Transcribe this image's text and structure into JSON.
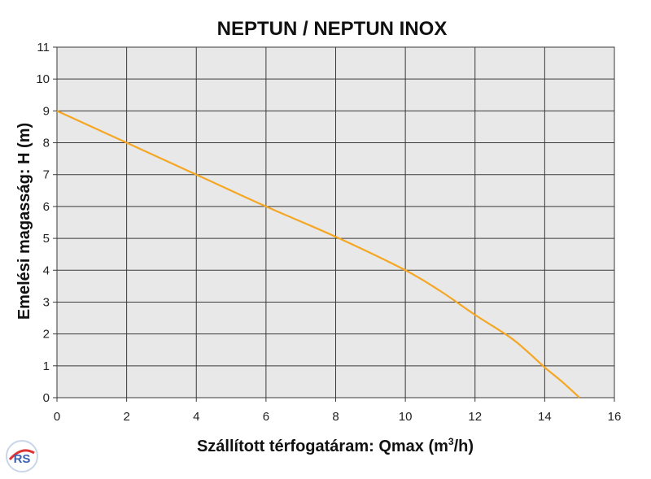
{
  "chart_data": {
    "type": "line",
    "title": "NEPTUN / NEPTUN INOX",
    "xlabel_main": "Szállított térfogatáram: Qmax (m",
    "xlabel_sup": "3",
    "xlabel_end": "/h)",
    "ylabel": "Emelési magasság: H (m)",
    "xlim": [
      0,
      16
    ],
    "ylim": [
      0,
      11
    ],
    "xticks": [
      0,
      2,
      4,
      6,
      8,
      10,
      12,
      14,
      16
    ],
    "yticks": [
      0,
      1,
      2,
      3,
      4,
      5,
      6,
      7,
      8,
      9,
      10,
      11
    ],
    "grid": true,
    "series": [
      {
        "color": "#f5a623",
        "x": [
          0,
          2,
          4,
          6,
          8,
          10,
          11,
          12,
          13,
          13.5,
          14,
          14.5,
          15
        ],
        "y": [
          9,
          8,
          7,
          6,
          5.05,
          4,
          3.35,
          2.6,
          1.9,
          1.45,
          0.95,
          0.5,
          0
        ]
      }
    ],
    "colors": {
      "plot_bg": "#e8e8e8",
      "grid": "#3a3a3a",
      "line": "#f5a623"
    }
  },
  "logo": {
    "text": "RS",
    "icon": "brand-logo-icon"
  }
}
